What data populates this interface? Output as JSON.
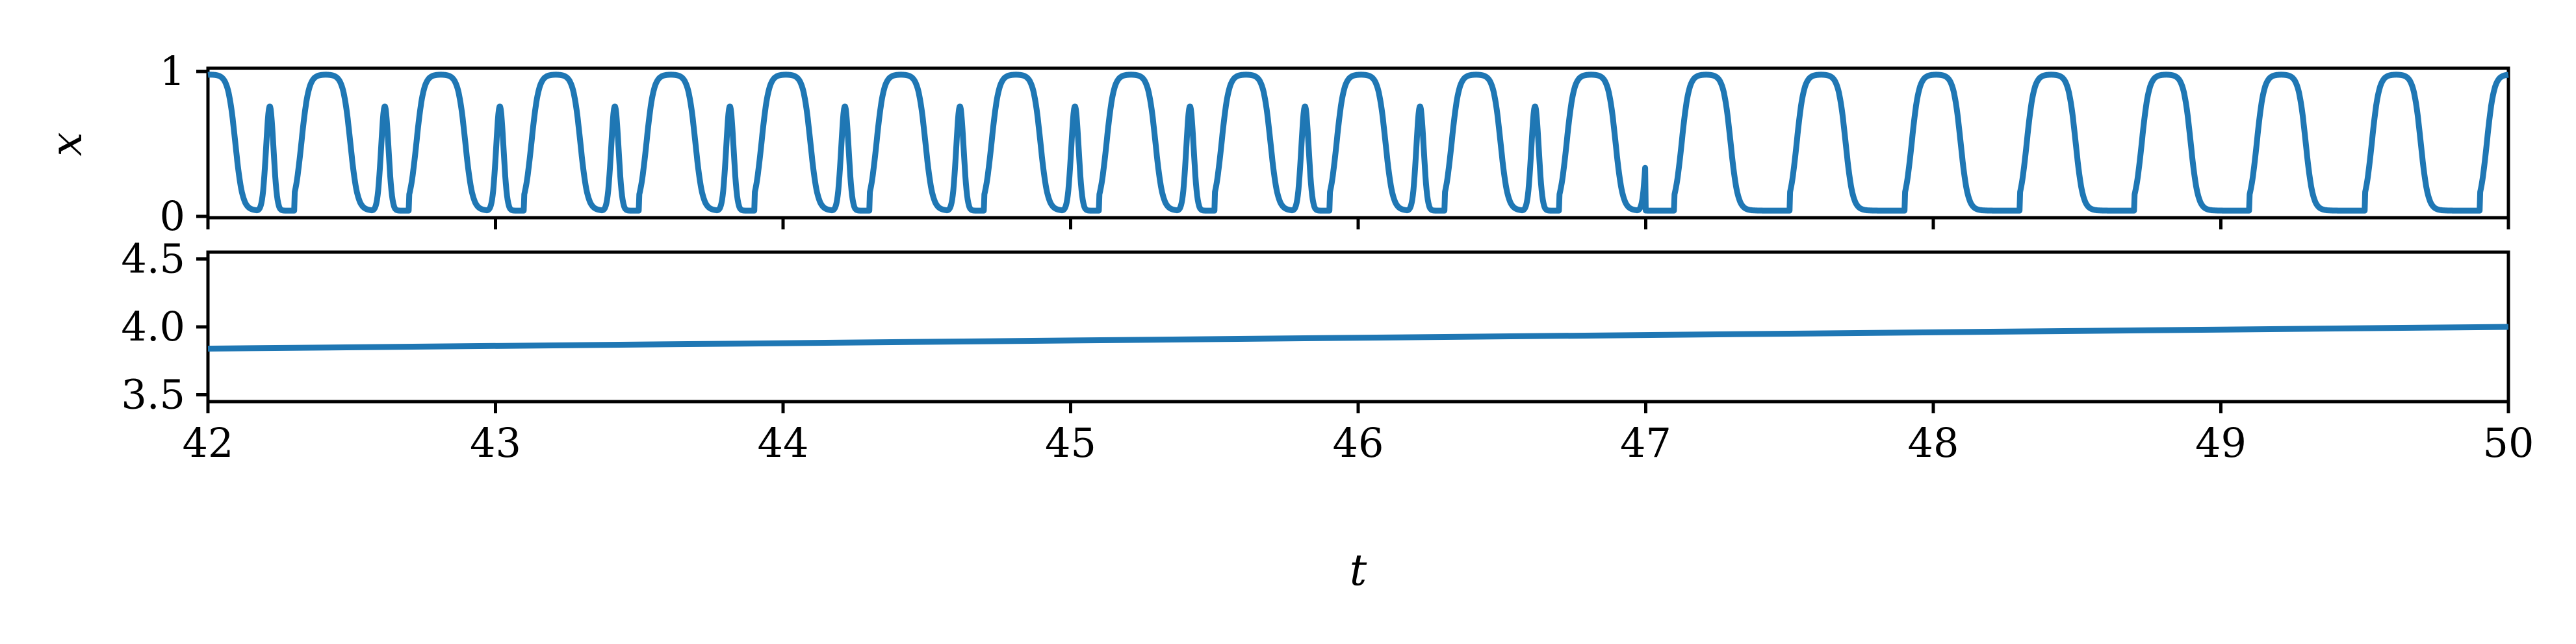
{
  "chart_data": [
    {
      "type": "line",
      "panel": "top",
      "ylabel": "x",
      "xlabel": "",
      "xlim": [
        42,
        50
      ],
      "ylim": [
        0,
        1
      ],
      "yticks": [
        0,
        1
      ],
      "ytick_labels": [
        "0",
        "1"
      ],
      "xtick_labels_visible": false,
      "color": "#1f77b4",
      "series": [
        {
          "description_of_shape": "bursting oscillation",
          "period": 0.4,
          "burst_double_peak_until": 47.0,
          "t_start": 42.0,
          "t_end": 50.0,
          "y_min": 0.04,
          "y_max": 0.98,
          "secondary_peak": 0.76
        }
      ]
    },
    {
      "type": "line",
      "panel": "bottom",
      "xlabel": "t",
      "ylabel": "",
      "xlim": [
        42,
        50
      ],
      "ylim": [
        3.45,
        4.55
      ],
      "yticks": [
        3.5,
        4.0,
        4.5
      ],
      "ytick_labels": [
        "3.5",
        "4.0",
        "4.5"
      ],
      "xticks": [
        42,
        43,
        44,
        45,
        46,
        47,
        48,
        49,
        50
      ],
      "xtick_labels": [
        "42",
        "43",
        "44",
        "45",
        "46",
        "47",
        "48",
        "49",
        "50"
      ],
      "color": "#1f77b4",
      "series": [
        {
          "x": [
            42,
            50
          ],
          "y": [
            3.84,
            4.0
          ]
        }
      ]
    }
  ]
}
